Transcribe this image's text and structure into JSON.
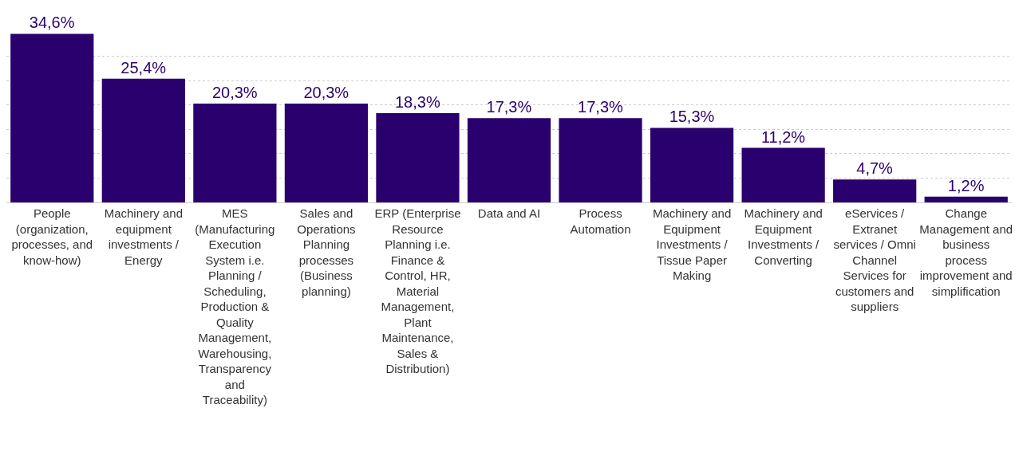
{
  "chart_data": {
    "type": "bar",
    "categories": [
      "People (organization, processes, and know-how)",
      "Machinery and equipment investments / Energy",
      "MES (Manufacturing Execution System i.e. Planning / Scheduling, Production & Quality Management, Warehousing, Transparency and Traceability)",
      "Sales and Operations Planning processes (Business planning)",
      "ERP (Enterprise Resource Planning i.e. Finance & Control, HR, Material Management, Plant Maintenance, Sales & Distribution)",
      "Data and AI",
      "Process Automation",
      "Machinery and Equipment Investments / Tissue Paper Making",
      "Machinery and Equipment Investments / Converting",
      "eServices / Extranet services / Omni Channel Services for customers and suppliers",
      "Change Management and business process improvement and simplification"
    ],
    "values": [
      34.6,
      25.4,
      20.3,
      20.3,
      18.3,
      17.3,
      17.3,
      15.3,
      11.2,
      4.7,
      1.2
    ],
    "value_labels": [
      "34,6%",
      "25,4%",
      "20,3%",
      "20,3%",
      "18,3%",
      "17,3%",
      "17,3%",
      "15,3%",
      "11,2%",
      "4,7%",
      "1,2%"
    ],
    "color": "#2a006e",
    "ylim": [
      0,
      35
    ],
    "yticks": [
      {
        "value": 0,
        "label": null
      },
      {
        "value": 5,
        "label": null
      },
      {
        "value": 10,
        "label": null
      },
      {
        "value": 15,
        "label": null
      },
      {
        "value": 20,
        "label": null
      },
      {
        "value": 25,
        "label": null
      },
      {
        "value": 30,
        "label": null
      }
    ],
    "grid": "y",
    "tick_labels": "x"
  }
}
